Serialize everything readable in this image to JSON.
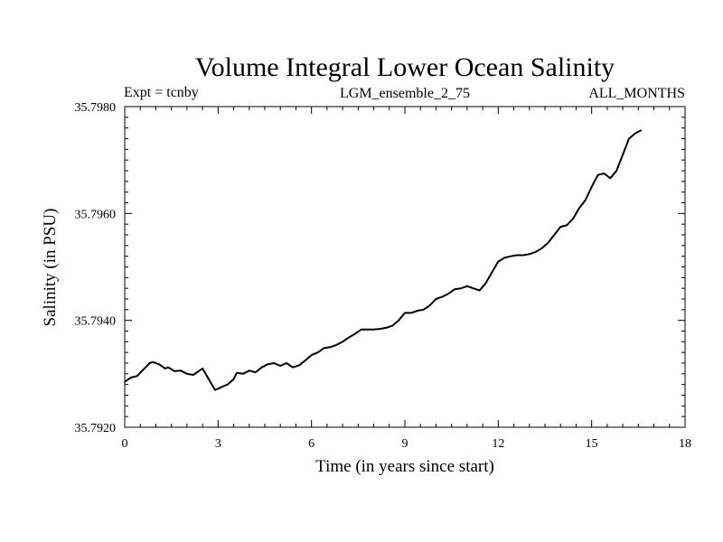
{
  "chart_data": {
    "type": "line",
    "title": "Volume Integral Lower Ocean Salinity",
    "subtitle_left": "Expt = tcnby",
    "subtitle_center": "LGM_ensemble_2_75",
    "subtitle_right": "ALL_MONTHS",
    "xlabel": "Time (in years since start)",
    "ylabel": "Salinity (in PSU)",
    "xlim": [
      0,
      18
    ],
    "ylim": [
      35.792,
      35.798
    ],
    "xticks": [
      0,
      3,
      6,
      9,
      12,
      15,
      18
    ],
    "xtick_labels": [
      "0",
      "3",
      "6",
      "9",
      "12",
      "15",
      "18"
    ],
    "yticks": [
      35.792,
      35.794,
      35.796,
      35.798
    ],
    "ytick_labels": [
      "35.7920",
      "35.7940",
      "35.7960",
      "35.7980"
    ],
    "grid": false,
    "series": [
      {
        "name": "Salinity",
        "color": "#000000",
        "x": [
          0.0,
          0.2,
          0.4,
          0.6,
          0.8,
          0.9,
          1.1,
          1.3,
          1.4,
          1.6,
          1.8,
          2.0,
          2.2,
          2.5,
          2.7,
          2.9,
          3.0,
          3.1,
          3.3,
          3.5,
          3.6,
          3.8,
          4.0,
          4.2,
          4.4,
          4.6,
          4.8,
          5.0,
          5.2,
          5.4,
          5.6,
          5.8,
          6.0,
          6.2,
          6.4,
          6.6,
          6.8,
          7.0,
          7.2,
          7.4,
          7.6,
          7.8,
          8.0,
          8.2,
          8.4,
          8.6,
          8.8,
          9.0,
          9.2,
          9.4,
          9.6,
          9.8,
          10.0,
          10.2,
          10.4,
          10.6,
          10.8,
          11.0,
          11.2,
          11.4,
          11.6,
          11.8,
          12.0,
          12.2,
          12.4,
          12.6,
          12.8,
          13.0,
          13.2,
          13.4,
          13.6,
          13.8,
          14.0,
          14.2,
          14.4,
          14.6,
          14.8,
          15.0,
          15.2,
          15.4,
          15.6,
          15.8,
          16.0,
          16.2,
          16.4,
          16.6
        ],
        "values": [
          35.79285,
          35.79293,
          35.79296,
          35.79308,
          35.7932,
          35.79322,
          35.79318,
          35.7931,
          35.79312,
          35.79305,
          35.79306,
          35.793,
          35.79298,
          35.7931,
          35.7929,
          35.7927,
          35.79272,
          35.79275,
          35.7928,
          35.7929,
          35.79302,
          35.793,
          35.79306,
          35.79303,
          35.79312,
          35.79318,
          35.7932,
          35.79315,
          35.7932,
          35.79312,
          35.79316,
          35.79325,
          35.79335,
          35.7934,
          35.79348,
          35.7935,
          35.79354,
          35.7936,
          35.79368,
          35.79375,
          35.79383,
          35.79383,
          35.79383,
          35.79384,
          35.79386,
          35.7939,
          35.794,
          35.79414,
          35.79414,
          35.79418,
          35.7942,
          35.79428,
          35.7944,
          35.79444,
          35.7945,
          35.79458,
          35.7946,
          35.79464,
          35.7946,
          35.79456,
          35.7947,
          35.7949,
          35.7951,
          35.79517,
          35.7952,
          35.79522,
          35.79522,
          35.79524,
          35.79528,
          35.79535,
          35.79545,
          35.7956,
          35.79575,
          35.79578,
          35.7959,
          35.7961,
          35.79625,
          35.7965,
          35.79672,
          35.79675,
          35.79666,
          35.7968,
          35.7971,
          35.7974,
          35.7975,
          35.79756
        ]
      }
    ]
  }
}
